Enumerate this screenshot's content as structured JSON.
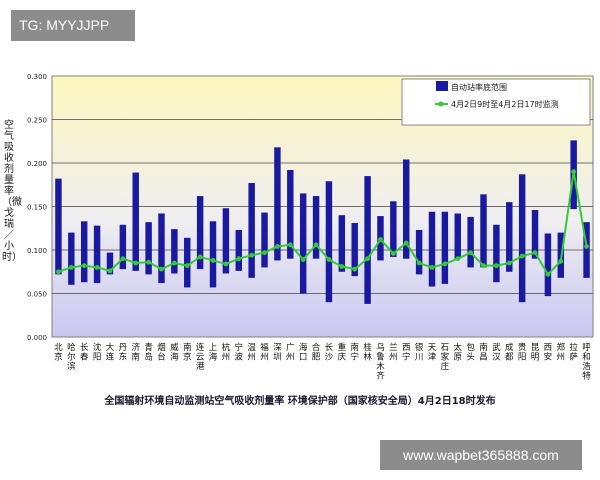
{
  "watermarks": {
    "top": "TG: MYYJJPP",
    "bottom": "www.wapbet365888.com"
  },
  "caption": "全国辐射环境自动监测站空气吸收剂量率   环境保护部（国家核安全局）4月2日18时发布",
  "chart_data": {
    "type": "bar",
    "ylabel": "空气吸收剂量率（微戈瑞／小时）",
    "ylim": [
      0,
      0.3
    ],
    "yticks": [
      "0.000",
      "0.050",
      "0.100",
      "0.150",
      "0.200",
      "0.250",
      "0.300"
    ],
    "legend_position": "top-right",
    "categories": [
      "北京",
      "哈尔滨",
      "长春",
      "沈阳",
      "大连",
      "丹东",
      "济南",
      "青岛",
      "烟台",
      "威海",
      "南京",
      "连云港",
      "上海",
      "杭州",
      "宁波",
      "温州",
      "福州",
      "深圳",
      "广州",
      "海口",
      "合肥",
      "长沙",
      "重庆",
      "南宁",
      "桂林",
      "乌鲁木齐",
      "兰州",
      "西宁",
      "银川",
      "天津",
      "石家庄",
      "太原",
      "包头",
      "南昌",
      "武汉",
      "成都",
      "贵阳",
      "昆明",
      "西安",
      "郑州",
      "拉萨",
      "呼和浩特"
    ],
    "series": [
      {
        "name": "自动站率底范围",
        "kind": "range",
        "color": "#1a1aa0",
        "low": [
          0.072,
          0.06,
          0.063,
          0.062,
          0.072,
          0.078,
          0.076,
          0.072,
          0.062,
          0.073,
          0.057,
          0.078,
          0.057,
          0.073,
          0.076,
          0.068,
          0.08,
          0.088,
          0.09,
          0.05,
          0.09,
          0.04,
          0.075,
          0.07,
          0.038,
          0.088,
          0.092,
          0.09,
          0.072,
          0.058,
          0.061,
          0.09,
          0.08,
          0.08,
          0.063,
          0.075,
          0.04,
          0.09,
          0.047,
          0.068,
          0.147,
          0.068
        ],
        "high": [
          0.182,
          0.12,
          0.133,
          0.128,
          0.097,
          0.129,
          0.189,
          0.132,
          0.142,
          0.124,
          0.114,
          0.162,
          0.133,
          0.148,
          0.123,
          0.177,
          0.143,
          0.218,
          0.192,
          0.165,
          0.162,
          0.179,
          0.14,
          0.131,
          0.185,
          0.139,
          0.156,
          0.204,
          0.123,
          0.144,
          0.144,
          0.142,
          0.138,
          0.164,
          0.129,
          0.155,
          0.187,
          0.146,
          0.119,
          0.12,
          0.226,
          0.132
        ]
      },
      {
        "name": "4月2日9时至4月2日17时监测",
        "kind": "line",
        "color": "#33cc33",
        "values": [
          0.075,
          0.08,
          0.082,
          0.08,
          0.076,
          0.09,
          0.085,
          0.086,
          0.078,
          0.085,
          0.082,
          0.092,
          0.088,
          0.084,
          0.09,
          0.094,
          0.097,
          0.104,
          0.106,
          0.089,
          0.106,
          0.089,
          0.081,
          0.078,
          0.09,
          0.112,
          0.096,
          0.108,
          0.085,
          0.08,
          0.084,
          0.09,
          0.097,
          0.082,
          0.082,
          0.085,
          0.093,
          0.097,
          0.072,
          0.087,
          0.19,
          0.104
        ]
      }
    ]
  }
}
